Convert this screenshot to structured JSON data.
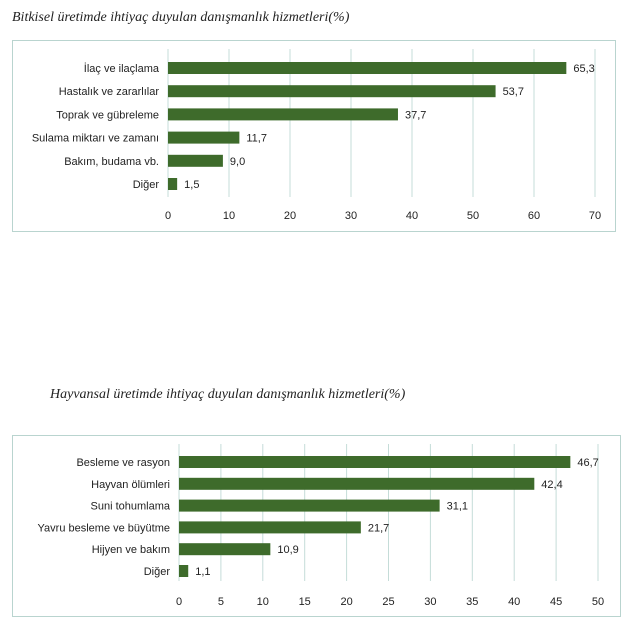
{
  "colors": {
    "bar": "#3e6b2b",
    "grid": "#c5dcd8",
    "border": "#b9d4cf"
  },
  "chart_data": [
    {
      "type": "bar",
      "orientation": "horizontal",
      "title": "Bitkisel üretimde ihtiyaç duyulan danışmanlık hizmetleri(%)",
      "categories": [
        "İlaç ve ilaçlama",
        "Hastalık ve zararlılar",
        "Toprak ve gübreleme",
        "Sulama miktarı ve zamanı",
        "Bakım, budama vb.",
        "Diğer"
      ],
      "values": [
        65.3,
        53.7,
        37.7,
        11.7,
        9.0,
        1.5
      ],
      "value_labels": [
        "65,3",
        "53,7",
        "37,7",
        "11,7",
        "9,0",
        "1,5"
      ],
      "xlim": [
        0,
        70
      ],
      "xticks": [
        0,
        10,
        20,
        30,
        40,
        50,
        60,
        70
      ],
      "grid": true
    },
    {
      "type": "bar",
      "orientation": "horizontal",
      "title": "Hayvansal üretimde ihtiyaç duyulan danışmanlık hizmetleri(%)",
      "categories": [
        "Besleme ve rasyon",
        "Hayvan ölümleri",
        "Suni tohumlama",
        "Yavru besleme ve büyütme",
        "Hijyen ve bakım",
        "Diğer"
      ],
      "values": [
        46.7,
        42.4,
        31.1,
        21.7,
        10.9,
        1.1
      ],
      "value_labels": [
        "46,7",
        "42,4",
        "31,1",
        "21,7",
        "10,9",
        "1,1"
      ],
      "xlim": [
        0,
        50
      ],
      "xticks": [
        0,
        5,
        10,
        15,
        20,
        25,
        30,
        35,
        40,
        45,
        50
      ],
      "grid": true
    }
  ]
}
